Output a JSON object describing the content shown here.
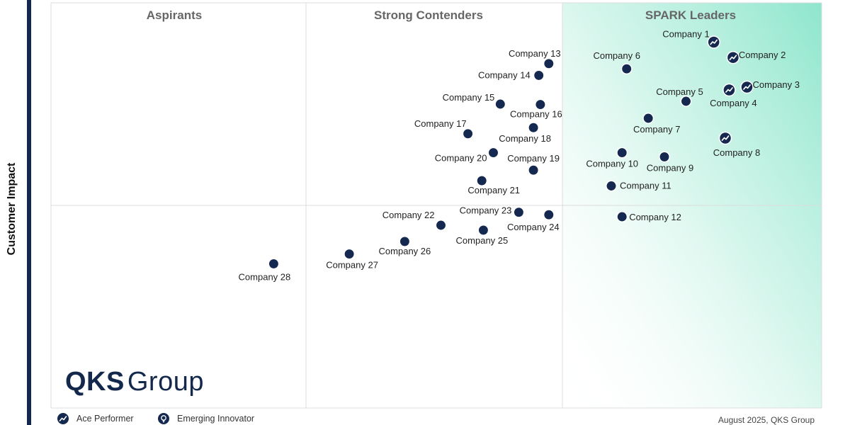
{
  "chart_data": {
    "type": "scatter",
    "title": "",
    "ylabel": "Customer Impact",
    "xlabel": "",
    "xlim": [
      0,
      100
    ],
    "ylim": [
      0,
      100
    ],
    "quadrants": [
      "Aspirants",
      "Strong Contenders",
      "SPARK Leaders"
    ],
    "points": [
      {
        "name": "Company 1",
        "x": 86.0,
        "y": 90.3,
        "icon": "ace"
      },
      {
        "name": "Company 2",
        "x": 88.5,
        "y": 86.5,
        "icon": "ace"
      },
      {
        "name": "Company 3",
        "x": 90.3,
        "y": 79.2,
        "icon": "ace"
      },
      {
        "name": "Company 4",
        "x": 88.0,
        "y": 78.5,
        "icon": "ace"
      },
      {
        "name": "Company 5",
        "x": 82.4,
        "y": 75.7,
        "icon": "none"
      },
      {
        "name": "Company 6",
        "x": 74.7,
        "y": 83.7,
        "icon": "none"
      },
      {
        "name": "Company 7",
        "x": 77.5,
        "y": 71.5,
        "icon": "none"
      },
      {
        "name": "Company 8",
        "x": 87.5,
        "y": 66.6,
        "icon": "ace"
      },
      {
        "name": "Company 9",
        "x": 79.6,
        "y": 62.0,
        "icon": "none"
      },
      {
        "name": "Company 10",
        "x": 74.1,
        "y": 63.0,
        "icon": "none"
      },
      {
        "name": "Company 11",
        "x": 72.7,
        "y": 54.8,
        "icon": "none"
      },
      {
        "name": "Company 12",
        "x": 74.1,
        "y": 47.2,
        "icon": "none"
      },
      {
        "name": "Company 13",
        "x": 64.6,
        "y": 85.0,
        "icon": "none"
      },
      {
        "name": "Company 14",
        "x": 63.3,
        "y": 82.1,
        "icon": "none"
      },
      {
        "name": "Company 15",
        "x": 58.3,
        "y": 75.0,
        "icon": "none"
      },
      {
        "name": "Company 16",
        "x": 63.5,
        "y": 74.9,
        "icon": "none"
      },
      {
        "name": "Company 17",
        "x": 54.1,
        "y": 67.7,
        "icon": "none"
      },
      {
        "name": "Company 18",
        "x": 62.6,
        "y": 69.2,
        "icon": "none"
      },
      {
        "name": "Company 19",
        "x": 62.6,
        "y": 58.7,
        "icon": "none"
      },
      {
        "name": "Company 20",
        "x": 57.4,
        "y": 63.0,
        "icon": "none"
      },
      {
        "name": "Company 21",
        "x": 55.9,
        "y": 56.1,
        "icon": "none"
      },
      {
        "name": "Company 22",
        "x": 50.6,
        "y": 45.1,
        "icon": "none"
      },
      {
        "name": "Company 23",
        "x": 60.7,
        "y": 48.3,
        "icon": "none"
      },
      {
        "name": "Company 24",
        "x": 64.6,
        "y": 47.7,
        "icon": "none"
      },
      {
        "name": "Company 25",
        "x": 56.1,
        "y": 43.9,
        "icon": "none"
      },
      {
        "name": "Company 26",
        "x": 45.9,
        "y": 41.1,
        "icon": "none"
      },
      {
        "name": "Company 27",
        "x": 38.7,
        "y": 38.0,
        "icon": "none"
      },
      {
        "name": "Company 28",
        "x": 28.9,
        "y": 35.6,
        "icon": "none"
      }
    ],
    "legend": [
      {
        "label": "Ace Performer",
        "icon": "ace-performer-icon"
      },
      {
        "label": "Emerging Innovator",
        "icon": "emerging-innovator-icon"
      }
    ],
    "colors": {
      "point": "#142850",
      "leaders_gradient": "#8ee6cc",
      "gridline": "#dcdcdc",
      "quadrant_title": "#666666",
      "left_bar": "#14284b"
    }
  },
  "logo": {
    "bold": "QKS",
    "rest": "Group"
  },
  "footer": "August 2025, QKS Group"
}
